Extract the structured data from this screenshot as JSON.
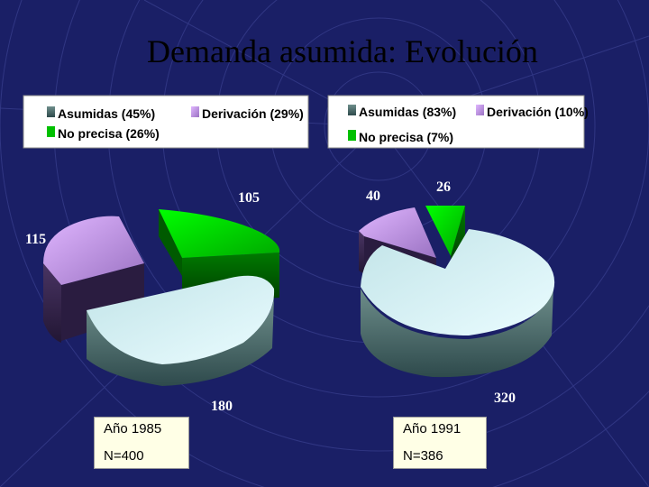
{
  "slide": {
    "title": "Demanda asumida: Evolución",
    "captions": [
      {
        "year": "Año 1985",
        "n": "N=400"
      },
      {
        "year": "Año 1991",
        "n": "N=386"
      }
    ]
  },
  "colors": {
    "background": "#1a1f66",
    "asumidas": "#dff7fb",
    "derivacion": "#c9a0e8",
    "no_precisa": "#00d800"
  },
  "chart_data": [
    {
      "type": "pie",
      "title": "",
      "legend": [
        "Asumidas (45%)",
        "Derivación (29%)",
        "No precisa (26%)"
      ],
      "categories": [
        "Asumidas",
        "Derivación",
        "No precisa"
      ],
      "values": [
        180,
        115,
        105
      ],
      "data_labels": [
        "180",
        "115",
        "105"
      ],
      "percent_labels": [
        "45%",
        "29%",
        "26%"
      ]
    },
    {
      "type": "pie",
      "title": "",
      "legend": [
        "Asumidas (83%)",
        "Derivación (10%)",
        "No precisa (7%)"
      ],
      "categories": [
        "Asumidas",
        "Derivación",
        "No precisa"
      ],
      "values": [
        320,
        40,
        26
      ],
      "data_labels": [
        "320",
        "40",
        "26"
      ],
      "percent_labels": [
        "83%",
        "10%",
        "7%"
      ]
    }
  ]
}
